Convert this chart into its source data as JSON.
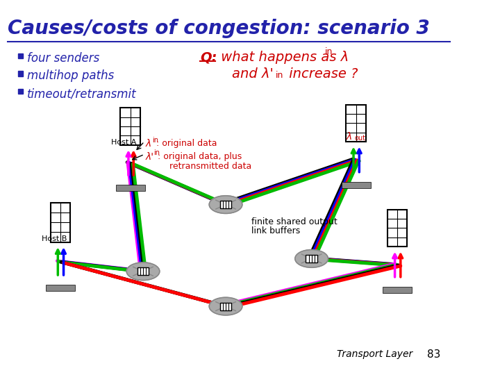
{
  "title": "Causes/costs of congestion: scenario 3",
  "title_color": "#2222AA",
  "title_fontsize": 20,
  "bullet_color": "#2222AA",
  "bullets": [
    "four senders",
    "multihop paths",
    "timeout/retransmit"
  ],
  "q_color": "#CC0000",
  "annotation_color": "#CC0000",
  "orig_data_text": ": original data",
  "retrans_line1": ": original data, plus",
  "retrans_line2": "retransmitted data",
  "finite_text_line1": "finite shared output",
  "finite_text_line2": "link buffers",
  "host_a_label": "Host A",
  "host_b_label": "Host B",
  "footer_text": "Transport Layer",
  "footer_page": "83",
  "footer_color": "#000000",
  "bg_color": "#FFFFFF",
  "red": "#FF0000",
  "blue": "#0000FF",
  "green": "#00BB00",
  "magenta": "#FF00FF",
  "black": "#000000",
  "router_fill": "#AAAAAA",
  "router_edge": "#888888",
  "host_box_edge": "#000000",
  "shelf_color": "#888888"
}
